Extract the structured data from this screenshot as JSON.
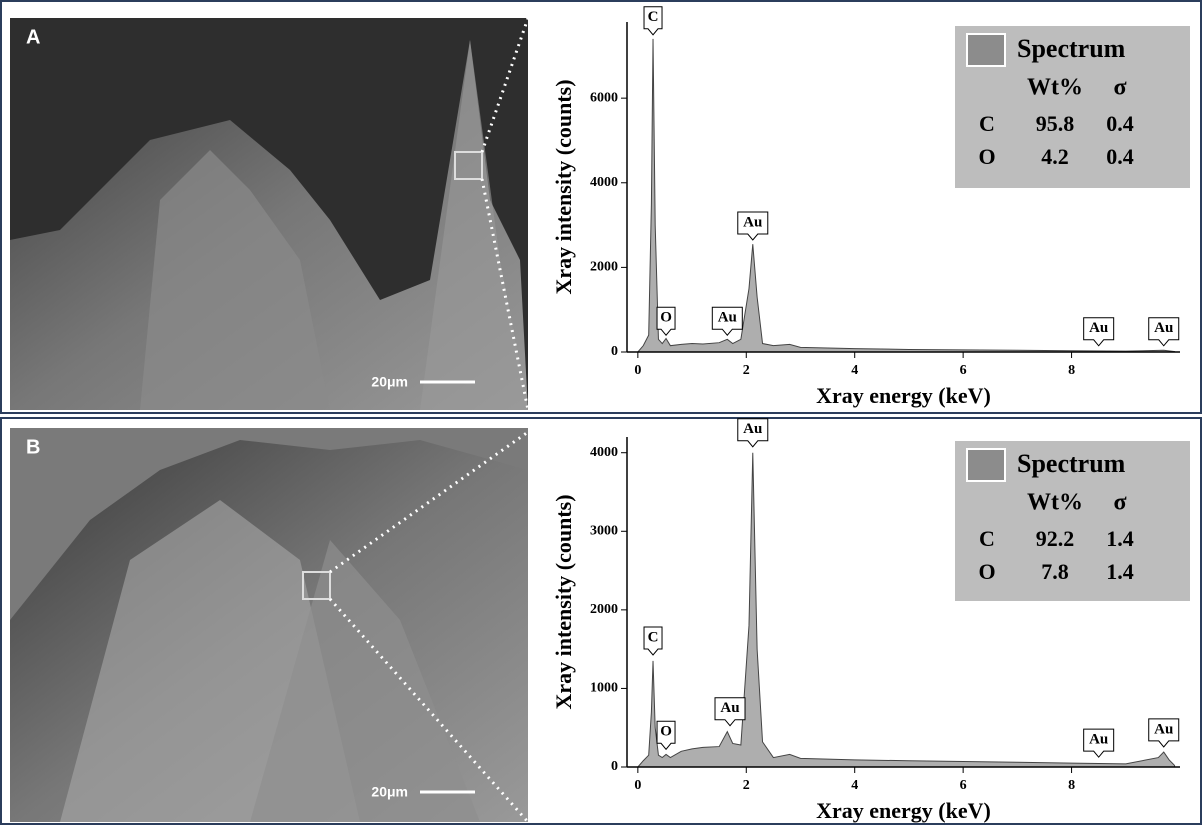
{
  "panels": [
    {
      "label": "A",
      "scale_bar": "20μm"
    },
    {
      "label": "B",
      "scale_bar": "20μm"
    }
  ],
  "chart_data": [
    {
      "type": "area",
      "xlabel": "Xray energy (keV)",
      "ylabel": "Xray intensity (counts)",
      "x": [
        0,
        0.1,
        0.2,
        0.25,
        0.28,
        0.32,
        0.38,
        0.45,
        0.52,
        0.6,
        0.8,
        1.0,
        1.2,
        1.5,
        1.65,
        1.75,
        1.9,
        2.05,
        2.12,
        2.2,
        2.3,
        2.5,
        2.8,
        3.0,
        4,
        5,
        6,
        7,
        8,
        9,
        9.7,
        9.9
      ],
      "series": [
        {
          "name": "Spectrum",
          "color": "#8c8c8c",
          "values": [
            0,
            150,
            400,
            3500,
            7400,
            3000,
            300,
            200,
            320,
            150,
            180,
            200,
            190,
            220,
            300,
            200,
            300,
            1500,
            2550,
            1300,
            200,
            150,
            180,
            110,
            80,
            60,
            50,
            40,
            30,
            20,
            40,
            10
          ]
        }
      ],
      "xlim": [
        -0.2,
        10
      ],
      "ylim": [
        0,
        7800
      ],
      "xticks": [
        0,
        2,
        4,
        6,
        8
      ],
      "yticks": [
        0,
        2000,
        4000,
        6000
      ],
      "annotations": [
        {
          "text": "C",
          "x": 0.28,
          "y": 7450
        },
        {
          "text": "O",
          "x": 0.52,
          "y": 350
        },
        {
          "text": "Au",
          "x": 1.65,
          "y": 350
        },
        {
          "text": "Au",
          "x": 2.12,
          "y": 2600
        },
        {
          "text": "Au",
          "x": 8.5,
          "y": 100
        },
        {
          "text": "Au",
          "x": 9.7,
          "y": 100
        }
      ],
      "table": {
        "columns": [
          "Wt%",
          "σ"
        ],
        "rows": [
          [
            "C",
            95.8,
            0.4
          ],
          [
            "O",
            4.2,
            0.4
          ]
        ]
      }
    },
    {
      "type": "area",
      "xlabel": "Xray energy (keV)",
      "ylabel": "Xray intensity (counts)",
      "x": [
        0,
        0.1,
        0.2,
        0.25,
        0.28,
        0.32,
        0.38,
        0.45,
        0.52,
        0.6,
        0.8,
        1.0,
        1.2,
        1.5,
        1.65,
        1.75,
        1.9,
        2.05,
        2.12,
        2.2,
        2.3,
        2.5,
        2.8,
        3.0,
        4,
        5,
        6,
        7,
        8,
        9,
        9.6,
        9.7,
        9.8,
        9.9
      ],
      "series": [
        {
          "name": "Spectrum",
          "color": "#8c8c8c",
          "values": [
            0,
            80,
            150,
            700,
            1350,
            500,
            150,
            120,
            160,
            120,
            200,
            230,
            250,
            260,
            450,
            300,
            280,
            1800,
            4000,
            1500,
            320,
            120,
            160,
            110,
            90,
            80,
            70,
            60,
            50,
            40,
            120,
            190,
            90,
            20
          ]
        }
      ],
      "xlim": [
        -0.2,
        10
      ],
      "ylim": [
        0,
        4200
      ],
      "xticks": [
        0,
        2,
        4,
        6,
        8
      ],
      "yticks": [
        0,
        1000,
        2000,
        3000,
        4000
      ],
      "annotations": [
        {
          "text": "C",
          "x": 0.28,
          "y": 1400
        },
        {
          "text": "O",
          "x": 0.52,
          "y": 200
        },
        {
          "text": "Au",
          "x": 1.7,
          "y": 500
        },
        {
          "text": "Au",
          "x": 2.12,
          "y": 4050
        },
        {
          "text": "Au",
          "x": 8.5,
          "y": 100
        },
        {
          "text": "Au",
          "x": 9.7,
          "y": 230
        }
      ],
      "table": {
        "columns": [
          "Wt%",
          "σ"
        ],
        "rows": [
          [
            "C",
            92.2,
            1.4
          ],
          [
            "O",
            7.8,
            1.4
          ]
        ]
      }
    }
  ]
}
